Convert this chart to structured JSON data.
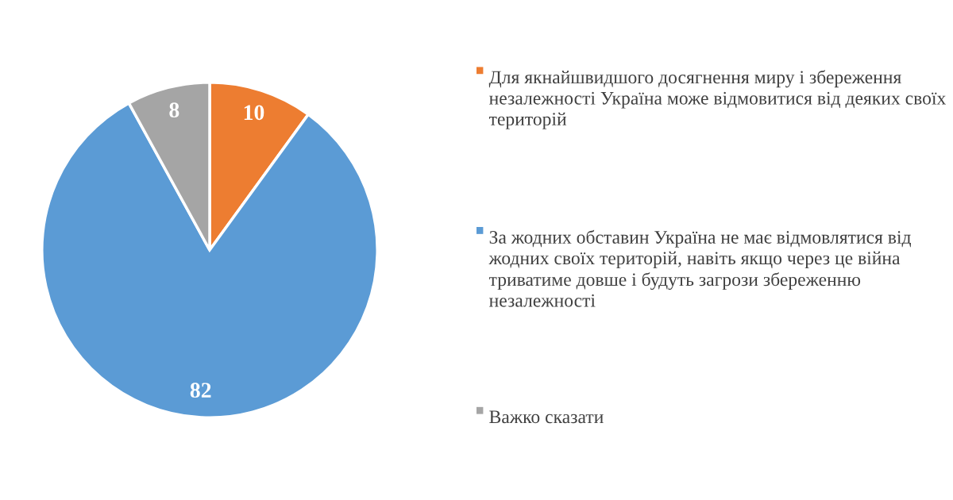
{
  "chart_data": {
    "type": "pie",
    "categories": [
      "Для якнайшвидшого досягнення миру і збереження незалежності Україна може відмовитися від деяких своїх територій",
      "За жодних обставин Україна не має відмовлятися від жодних своїх територій, навіть якщо через це війна триватиме довше і будуть загрози збереженню незалежності",
      "Важко сказати"
    ],
    "values": [
      10,
      82,
      8
    ],
    "colors": [
      "#ed7d31",
      "#5b9bd5",
      "#a5a5a5"
    ],
    "data_labels": true,
    "legend": "right"
  }
}
